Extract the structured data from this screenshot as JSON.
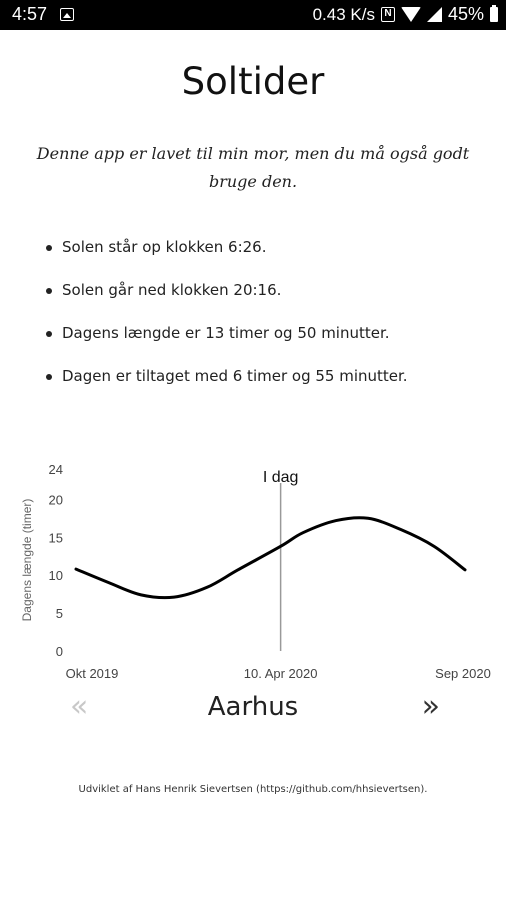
{
  "status_bar": {
    "time": "4:57",
    "network_speed": "0.43 K/s",
    "nfc_letter": "N",
    "battery": "45%",
    "icons": [
      "gallery-icon",
      "nfc-icon",
      "wifi-icon",
      "signal-icon",
      "battery-icon"
    ]
  },
  "header": {
    "title": "Soltider",
    "subtitle": "Denne app er lavet til min mor, men du må også godt bruge den."
  },
  "facts": [
    "Solen står op klokken 6:26.",
    "Solen går ned klokken 20:16.",
    "Dagens længde er 13 timer og 50 minutter.",
    "Dagen er tiltaget med 6 timer og 55 minutter."
  ],
  "chart_data": {
    "type": "line",
    "ylabel": "Dagens længde (timer)",
    "ylim": [
      0,
      24
    ],
    "yticks": [
      "0",
      "5",
      "10",
      "15",
      "20",
      "24"
    ],
    "xticks": [
      "Okt 2019",
      "10. Apr 2020",
      "Sep 2020"
    ],
    "marker_label": "I dag",
    "marker_x": "2020-04-10",
    "grid": false,
    "series": [
      {
        "x": [
          "2019-10-01",
          "2019-11-01",
          "2019-12-01",
          "2020-01-01",
          "2020-02-01",
          "2020-03-01",
          "2020-04-10",
          "2020-05-01",
          "2020-06-01",
          "2020-07-01",
          "2020-08-01",
          "2020-09-01",
          "2020-09-30"
        ],
        "values": [
          10.8,
          9.0,
          7.4,
          7.1,
          8.4,
          10.7,
          13.8,
          15.6,
          17.2,
          17.5,
          16.0,
          13.8,
          10.7
        ]
      }
    ]
  },
  "city_nav": {
    "prev_symbol": "«",
    "city": "Aarhus",
    "next_symbol": "»"
  },
  "footer": "Udviklet af Hans Henrik Sievertsen (https://github.com/hhsievertsen)."
}
